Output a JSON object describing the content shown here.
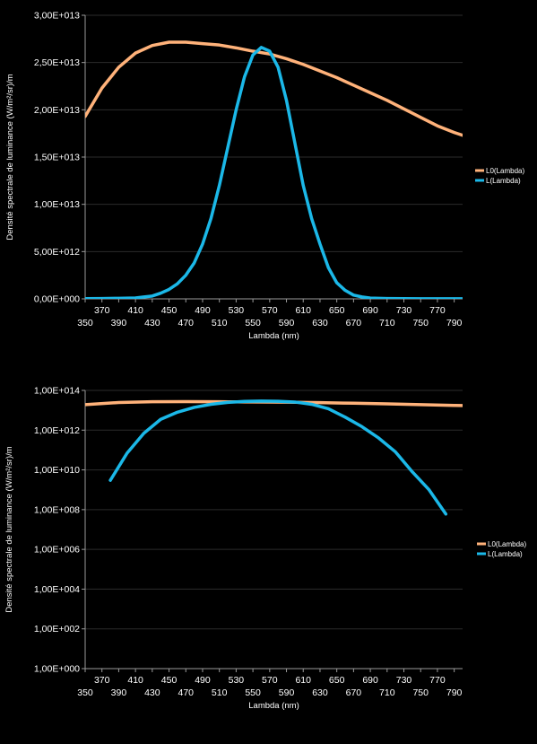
{
  "chart_data": [
    {
      "type": "line",
      "title": "",
      "xlabel": "Lambda (nm)",
      "ylabel": "Densité spectrale de luminance (W/m²/sr)/m",
      "xlim": [
        350,
        800
      ],
      "ylim": [
        0,
        30000000000000
      ],
      "yscale": "linear",
      "grid": true,
      "legend_position": "right",
      "x_ticks_upper": [
        "370",
        "410",
        "450",
        "490",
        "530",
        "570",
        "610",
        "650",
        "690",
        "730",
        "770"
      ],
      "x_ticks_lower": [
        "350",
        "390",
        "430",
        "470",
        "510",
        "550",
        "590",
        "630",
        "670",
        "710",
        "750",
        "790"
      ],
      "y_ticks": [
        "0,00E+000",
        "5,00E+012",
        "1,00E+013",
        "1,50E+013",
        "2,00E+013",
        "2,50E+013",
        "3,00E+013"
      ],
      "series": [
        {
          "name": "L0(Lambda)",
          "color": "#FFB27A",
          "x": [
            350,
            370,
            390,
            410,
            430,
            450,
            470,
            490,
            510,
            530,
            550,
            570,
            590,
            610,
            630,
            650,
            670,
            690,
            710,
            730,
            750,
            770,
            790,
            800
          ],
          "y": [
            19300000000000,
            22300000000000,
            24500000000000,
            26000000000000,
            26800000000000,
            27150000000000,
            27150000000000,
            27000000000000,
            26850000000000,
            26550000000000,
            26200000000000,
            25900000000000,
            25400000000000,
            24800000000000,
            24100000000000,
            23400000000000,
            22600000000000,
            21800000000000,
            21000000000000,
            20100000000000,
            19200000000000,
            18300000000000,
            17600000000000,
            17300000000000
          ]
        },
        {
          "name": "L(Lambda)",
          "color": "#1BB8E8",
          "x": [
            350,
            370,
            390,
            410,
            420,
            430,
            440,
            450,
            460,
            470,
            480,
            490,
            500,
            510,
            520,
            530,
            540,
            550,
            560,
            570,
            580,
            590,
            600,
            610,
            620,
            630,
            640,
            650,
            660,
            670,
            680,
            690,
            710,
            730,
            750,
            770,
            800
          ],
          "y": [
            20000000000,
            40000000000,
            60000000000,
            100000000000,
            200000000000,
            300000000000,
            600000000000,
            1000000000000,
            1600000000000,
            2500000000000,
            3800000000000,
            5800000000000,
            8500000000000,
            12000000000000,
            16000000000000,
            20000000000000,
            23500000000000,
            25800000000000,
            26600000000000,
            26200000000000,
            24500000000000,
            21000000000000,
            16500000000000,
            12000000000000,
            8500000000000,
            5800000000000,
            3300000000000,
            1700000000000,
            900000000000,
            400000000000,
            200000000000,
            80000000000,
            40000000000,
            20000000000,
            15000000000,
            10000000000,
            10000000000
          ]
        }
      ]
    },
    {
      "type": "line",
      "title": "",
      "xlabel": "Lambda (nm)",
      "ylabel": "Densité spectrale de luminance (W/m²/sr)/m",
      "xlim": [
        350,
        800
      ],
      "ylim": [
        1,
        100000000000000
      ],
      "yscale": "log",
      "grid": true,
      "legend_position": "right",
      "x_ticks_upper": [
        "370",
        "410",
        "450",
        "490",
        "530",
        "570",
        "610",
        "650",
        "690",
        "730",
        "770"
      ],
      "x_ticks_lower": [
        "350",
        "390",
        "430",
        "470",
        "510",
        "550",
        "590",
        "630",
        "670",
        "710",
        "750",
        "790"
      ],
      "y_ticks": [
        "1,00E+000",
        "1,00E+002",
        "1,00E+004",
        "1,00E+006",
        "1,00E+008",
        "1,00E+010",
        "1,00E+012",
        "1,00E+014"
      ],
      "series": [
        {
          "name": "L0(Lambda)",
          "color": "#FFB27A",
          "x": [
            350,
            390,
            430,
            470,
            510,
            550,
            590,
            630,
            670,
            710,
            750,
            790,
            800
          ],
          "y": [
            19300000000000,
            24500000000000,
            26800000000000,
            27150000000000,
            26850000000000,
            26200000000000,
            25400000000000,
            24100000000000,
            22600000000000,
            21000000000000,
            19200000000000,
            17600000000000,
            17300000000000
          ]
        },
        {
          "name": "L(Lambda)",
          "color": "#1BB8E8",
          "x": [
            380,
            400,
            420,
            440,
            460,
            480,
            500,
            520,
            540,
            560,
            580,
            600,
            620,
            640,
            660,
            680,
            700,
            720,
            740,
            760,
            780
          ],
          "y": [
            3000000000,
            70000000000,
            700000000000,
            3500000000000,
            8000000000000,
            14000000000000,
            20000000000000,
            25000000000000,
            28000000000000,
            29000000000000,
            28500000000000,
            26000000000000,
            20000000000000,
            12000000000000,
            4500000000000,
            1500000000000,
            400000000000,
            80000000000,
            8000000000,
            1000000000,
            60000000
          ]
        }
      ]
    }
  ]
}
